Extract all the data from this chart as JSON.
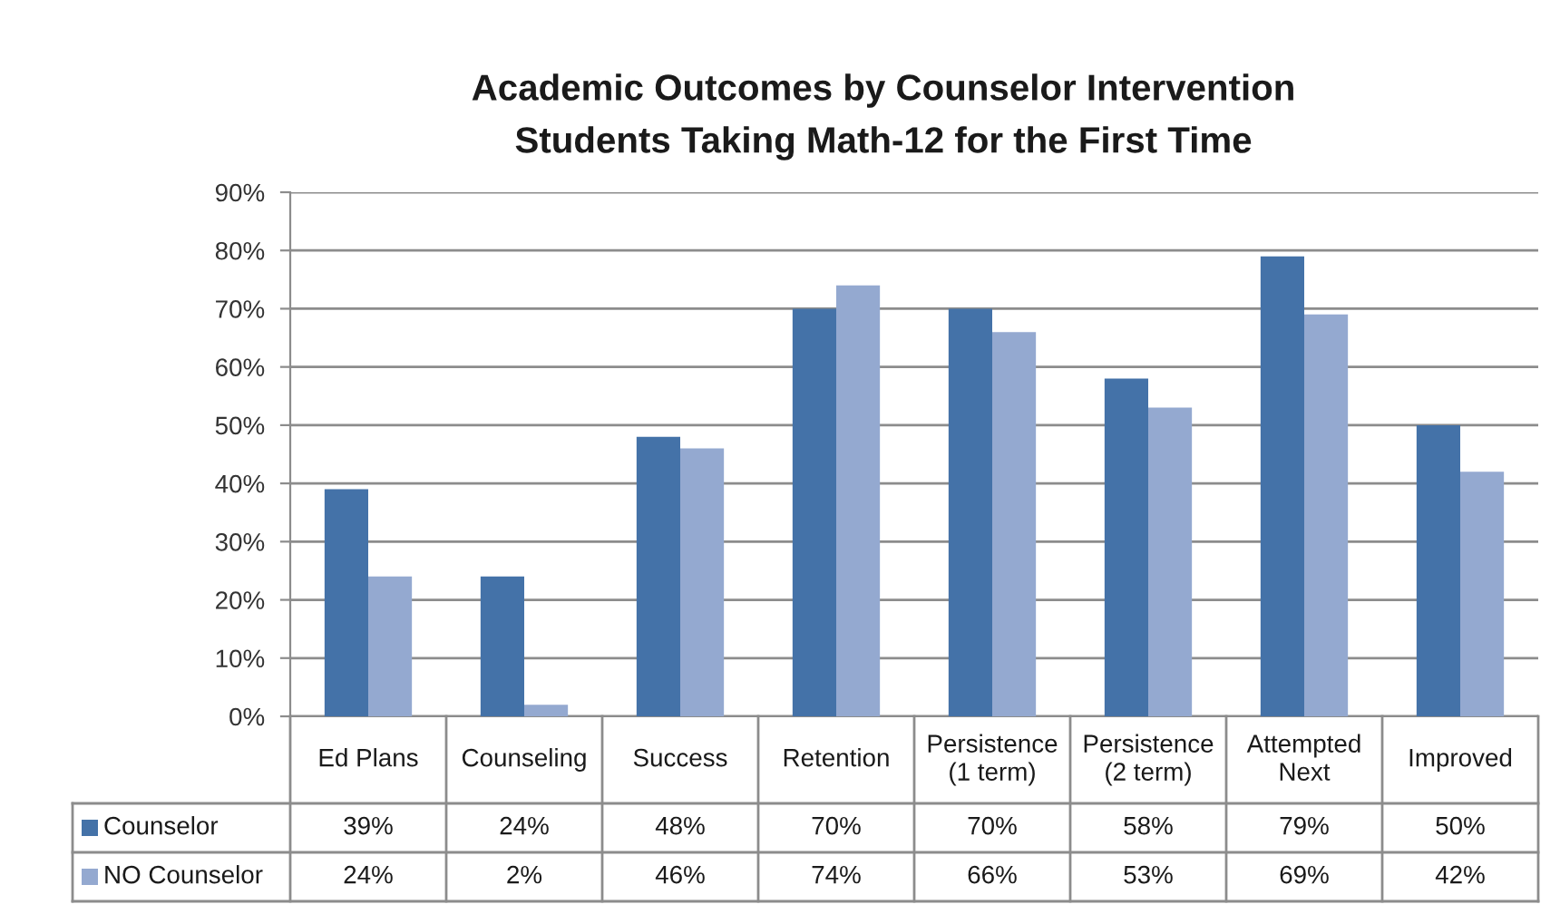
{
  "chart_data": {
    "type": "bar",
    "title": "Academic Outcomes by Counselor Intervention",
    "subtitle": "Students Taking Math-12 for the First Time",
    "categories": [
      "Ed Plans",
      "Counseling",
      "Success",
      "Retention",
      "Persistence (1 term)",
      "Persistence (2 term)",
      "Attempted Next",
      "Improved"
    ],
    "series": [
      {
        "name": "Counselor",
        "color": "#4472a8",
        "values": [
          39,
          24,
          48,
          70,
          70,
          58,
          79,
          50
        ],
        "value_labels": [
          "39%",
          "24%",
          "48%",
          "70%",
          "70%",
          "58%",
          "79%",
          "50%"
        ]
      },
      {
        "name": "NO Counselor",
        "color": "#94a9d0",
        "values": [
          24,
          2,
          46,
          74,
          66,
          53,
          69,
          42
        ],
        "value_labels": [
          "24%",
          "2%",
          "46%",
          "74%",
          "66%",
          "53%",
          "69%",
          "42%"
        ]
      }
    ],
    "ylim": [
      0,
      90
    ],
    "yticks": [
      {
        "value": 0,
        "label": "0%"
      },
      {
        "value": 10,
        "label": "10%"
      },
      {
        "value": 20,
        "label": "20%"
      },
      {
        "value": 30,
        "label": "30%"
      },
      {
        "value": 40,
        "label": "40%"
      },
      {
        "value": 50,
        "label": "50%"
      },
      {
        "value": 60,
        "label": "60%"
      },
      {
        "value": 70,
        "label": "70%"
      },
      {
        "value": 80,
        "label": "80%"
      },
      {
        "value": 90,
        "label": "90%"
      }
    ],
    "grid": "y",
    "legend": "bottom"
  }
}
